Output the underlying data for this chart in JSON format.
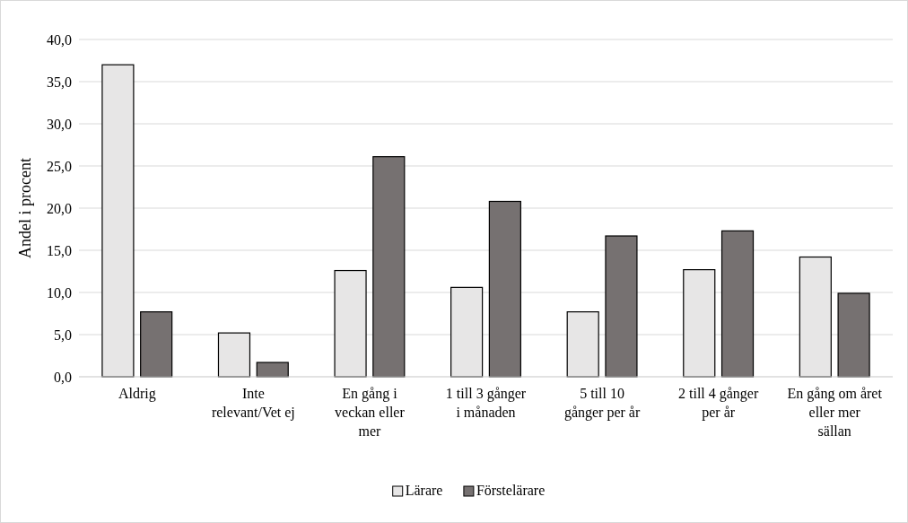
{
  "chart_data": {
    "type": "bar",
    "ylabel": "Andel i procent",
    "categories": [
      "Aldrig",
      "Inte relevant/Vet ej",
      "En gång i veckan eller mer",
      "1 till 3 gånger i månaden",
      "5 till 10 gånger per år",
      "2 till 4 gånger per år",
      "En gång om året eller mer sällan"
    ],
    "series": [
      {
        "name": "Lärare",
        "color": "#e7e6e6",
        "values": [
          37.0,
          5.2,
          12.6,
          10.6,
          7.7,
          12.7,
          14.2
        ]
      },
      {
        "name": "Förstelärare",
        "color": "#767171",
        "values": [
          7.7,
          1.7,
          26.1,
          20.8,
          16.7,
          17.3,
          9.9
        ]
      }
    ],
    "ylim": [
      0,
      40
    ],
    "yticks": [
      {
        "value": 0,
        "label": "0,0"
      },
      {
        "value": 5,
        "label": "5,0"
      },
      {
        "value": 10,
        "label": "10,0"
      },
      {
        "value": 15,
        "label": "15,0"
      },
      {
        "value": 20,
        "label": "20,0"
      },
      {
        "value": 25,
        "label": "25,0"
      },
      {
        "value": 30,
        "label": "30,0"
      },
      {
        "value": 35,
        "label": "35,0"
      },
      {
        "value": 40,
        "label": "40,0"
      }
    ],
    "grid": "y",
    "legend": "bottom"
  }
}
